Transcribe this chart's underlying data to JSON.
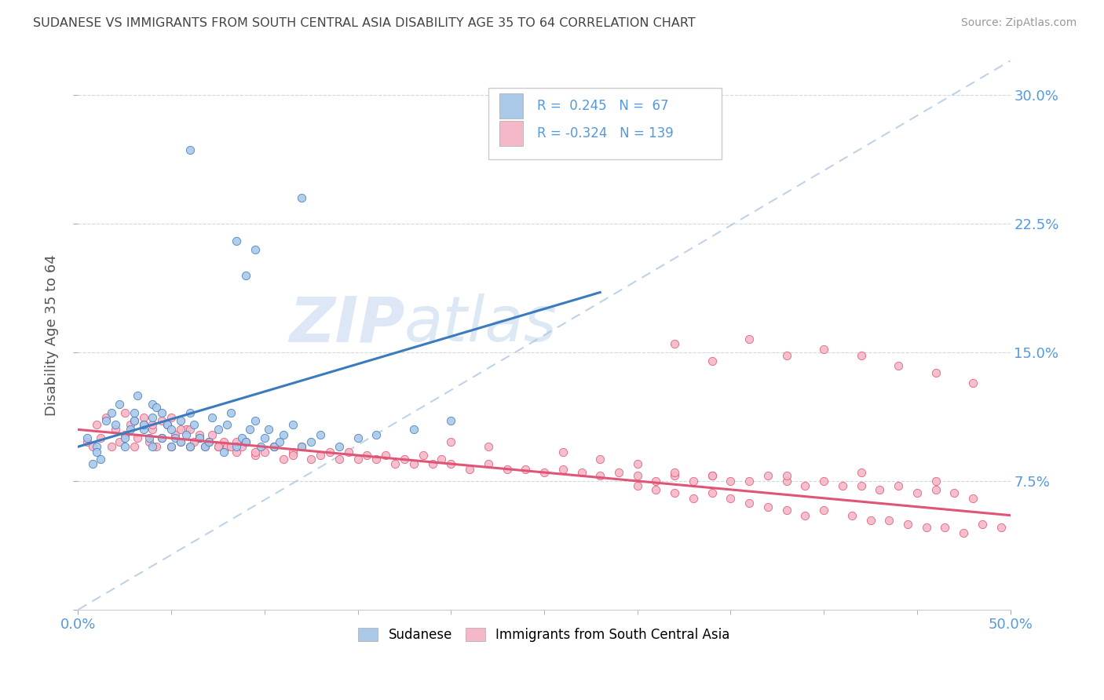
{
  "title": "SUDANESE VS IMMIGRANTS FROM SOUTH CENTRAL ASIA DISABILITY AGE 35 TO 64 CORRELATION CHART",
  "source": "Source: ZipAtlas.com",
  "ylabel_label": "Disability Age 35 to 64",
  "xrange": [
    0.0,
    0.5
  ],
  "yrange": [
    0.0,
    0.32
  ],
  "blue_color": "#aac9e8",
  "pink_color": "#f5b8c8",
  "blue_line_color": "#3a7abf",
  "pink_line_color": "#e05575",
  "blue_label": "Sudanese",
  "pink_label": "Immigrants from South Central Asia",
  "watermark_color": "#dce8f5",
  "ref_line_color": "#b0c8e0",
  "grid_color": "#d0d8e0",
  "title_color": "#444444",
  "axis_color": "#5599dd",
  "blue_scatter_x": [
    0.005,
    0.008,
    0.01,
    0.01,
    0.012,
    0.015,
    0.018,
    0.02,
    0.022,
    0.025,
    0.025,
    0.028,
    0.03,
    0.03,
    0.032,
    0.035,
    0.035,
    0.038,
    0.04,
    0.04,
    0.04,
    0.042,
    0.045,
    0.045,
    0.048,
    0.05,
    0.05,
    0.052,
    0.055,
    0.055,
    0.058,
    0.06,
    0.06,
    0.062,
    0.065,
    0.068,
    0.07,
    0.072,
    0.075,
    0.078,
    0.08,
    0.082,
    0.085,
    0.088,
    0.09,
    0.092,
    0.095,
    0.098,
    0.1,
    0.102,
    0.105,
    0.108,
    0.11,
    0.115,
    0.12,
    0.125,
    0.13,
    0.14,
    0.15,
    0.16,
    0.18,
    0.2,
    0.085,
    0.09,
    0.095,
    0.12,
    0.06
  ],
  "blue_scatter_y": [
    0.1,
    0.085,
    0.095,
    0.092,
    0.088,
    0.11,
    0.115,
    0.108,
    0.12,
    0.095,
    0.1,
    0.105,
    0.115,
    0.11,
    0.125,
    0.105,
    0.108,
    0.1,
    0.12,
    0.095,
    0.112,
    0.118,
    0.1,
    0.115,
    0.108,
    0.095,
    0.105,
    0.1,
    0.098,
    0.11,
    0.102,
    0.095,
    0.115,
    0.108,
    0.1,
    0.095,
    0.098,
    0.112,
    0.105,
    0.092,
    0.108,
    0.115,
    0.095,
    0.1,
    0.098,
    0.105,
    0.11,
    0.095,
    0.1,
    0.105,
    0.095,
    0.098,
    0.102,
    0.108,
    0.095,
    0.098,
    0.102,
    0.095,
    0.1,
    0.102,
    0.105,
    0.11,
    0.215,
    0.195,
    0.21,
    0.24,
    0.268
  ],
  "pink_scatter_x": [
    0.005,
    0.008,
    0.01,
    0.012,
    0.015,
    0.018,
    0.02,
    0.022,
    0.025,
    0.028,
    0.03,
    0.032,
    0.035,
    0.038,
    0.04,
    0.042,
    0.045,
    0.048,
    0.05,
    0.052,
    0.055,
    0.058,
    0.06,
    0.062,
    0.065,
    0.068,
    0.07,
    0.072,
    0.075,
    0.078,
    0.08,
    0.082,
    0.085,
    0.088,
    0.09,
    0.095,
    0.1,
    0.105,
    0.11,
    0.115,
    0.12,
    0.125,
    0.13,
    0.135,
    0.14,
    0.145,
    0.15,
    0.155,
    0.16,
    0.165,
    0.17,
    0.175,
    0.18,
    0.185,
    0.19,
    0.195,
    0.2,
    0.21,
    0.22,
    0.23,
    0.24,
    0.25,
    0.26,
    0.27,
    0.28,
    0.29,
    0.3,
    0.31,
    0.32,
    0.33,
    0.34,
    0.35,
    0.36,
    0.37,
    0.38,
    0.39,
    0.4,
    0.41,
    0.42,
    0.43,
    0.44,
    0.45,
    0.46,
    0.47,
    0.48,
    0.03,
    0.04,
    0.05,
    0.06,
    0.025,
    0.035,
    0.045,
    0.055,
    0.065,
    0.075,
    0.085,
    0.095,
    0.105,
    0.115,
    0.3,
    0.31,
    0.32,
    0.33,
    0.34,
    0.35,
    0.36,
    0.37,
    0.38,
    0.39,
    0.4,
    0.415,
    0.425,
    0.435,
    0.445,
    0.455,
    0.465,
    0.475,
    0.485,
    0.495,
    0.32,
    0.34,
    0.36,
    0.38,
    0.4,
    0.42,
    0.44,
    0.46,
    0.48,
    0.38,
    0.42,
    0.46,
    0.26,
    0.28,
    0.3,
    0.32,
    0.34,
    0.2,
    0.22
  ],
  "pink_scatter_y": [
    0.098,
    0.095,
    0.108,
    0.1,
    0.112,
    0.095,
    0.105,
    0.098,
    0.102,
    0.108,
    0.095,
    0.1,
    0.112,
    0.098,
    0.105,
    0.095,
    0.1,
    0.108,
    0.095,
    0.102,
    0.098,
    0.105,
    0.095,
    0.098,
    0.1,
    0.095,
    0.098,
    0.102,
    0.095,
    0.098,
    0.095,
    0.095,
    0.092,
    0.095,
    0.098,
    0.09,
    0.092,
    0.095,
    0.088,
    0.092,
    0.095,
    0.088,
    0.09,
    0.092,
    0.088,
    0.092,
    0.088,
    0.09,
    0.088,
    0.09,
    0.085,
    0.088,
    0.085,
    0.09,
    0.085,
    0.088,
    0.085,
    0.082,
    0.085,
    0.082,
    0.082,
    0.08,
    0.082,
    0.08,
    0.078,
    0.08,
    0.078,
    0.075,
    0.078,
    0.075,
    0.078,
    0.075,
    0.075,
    0.078,
    0.075,
    0.072,
    0.075,
    0.072,
    0.072,
    0.07,
    0.072,
    0.068,
    0.07,
    0.068,
    0.065,
    0.11,
    0.108,
    0.112,
    0.105,
    0.115,
    0.108,
    0.11,
    0.105,
    0.102,
    0.095,
    0.098,
    0.092,
    0.095,
    0.09,
    0.072,
    0.07,
    0.068,
    0.065,
    0.068,
    0.065,
    0.062,
    0.06,
    0.058,
    0.055,
    0.058,
    0.055,
    0.052,
    0.052,
    0.05,
    0.048,
    0.048,
    0.045,
    0.05,
    0.048,
    0.155,
    0.145,
    0.158,
    0.148,
    0.152,
    0.148,
    0.142,
    0.138,
    0.132,
    0.078,
    0.08,
    0.075,
    0.092,
    0.088,
    0.085,
    0.08,
    0.078,
    0.098,
    0.095
  ]
}
